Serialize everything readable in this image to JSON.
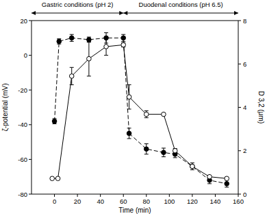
{
  "chart_data": {
    "type": "line",
    "x_label": "Time (min)",
    "y_label": "ζ-potential (mV)",
    "y2_label": "D 3,2 (μm)",
    "xlim": [
      -20,
      160
    ],
    "xticks": [
      0,
      20,
      40,
      60,
      80,
      100,
      120,
      140,
      160
    ],
    "ylim": [
      -80,
      20
    ],
    "yticks": [
      -80,
      -60,
      -40,
      -20,
      0,
      20
    ],
    "y2lim": [
      0,
      8
    ],
    "y2ticks": [
      0,
      2,
      4,
      6,
      8
    ],
    "grid": false,
    "periods": [
      {
        "label": "Gastric conditions (pH 2)",
        "start": -20,
        "end": 60
      },
      {
        "label": "Duodenal conditions (pH 6.5)",
        "start": 60,
        "end": 160
      }
    ],
    "series": [
      {
        "color": "#000000",
        "marker": "circle",
        "line_style": "dashed",
        "x": [
          0,
          4,
          15,
          30,
          45,
          60,
          65,
          80,
          95,
          105,
          120,
          135,
          150
        ],
        "values": [
          -38,
          8,
          10,
          9,
          10,
          10,
          -45,
          -54,
          -56,
          -57,
          -64,
          -72,
          -74
        ],
        "errors": [
          1.5,
          1.5,
          2,
          1.5,
          3,
          2,
          3,
          3,
          2.5,
          2,
          2,
          2,
          2
        ]
      },
      {
        "color": "#000000",
        "marker": "circle-open",
        "line_style": "solid",
        "axis": "y2",
        "x": [
          -2,
          3,
          15,
          30,
          45,
          60,
          65,
          80,
          95,
          105,
          120,
          135,
          150
        ],
        "values": [
          0.72,
          0.72,
          5.44,
          6.24,
          6.8,
          6.88,
          4.48,
          3.68,
          3.68,
          2.0,
          1.28,
          0.8,
          0.72
        ],
        "errors": [
          null,
          null,
          0.4,
          0.8,
          0.4,
          0.1,
          0.56,
          0.16,
          null,
          0.1,
          null,
          null,
          null
        ]
      }
    ]
  }
}
